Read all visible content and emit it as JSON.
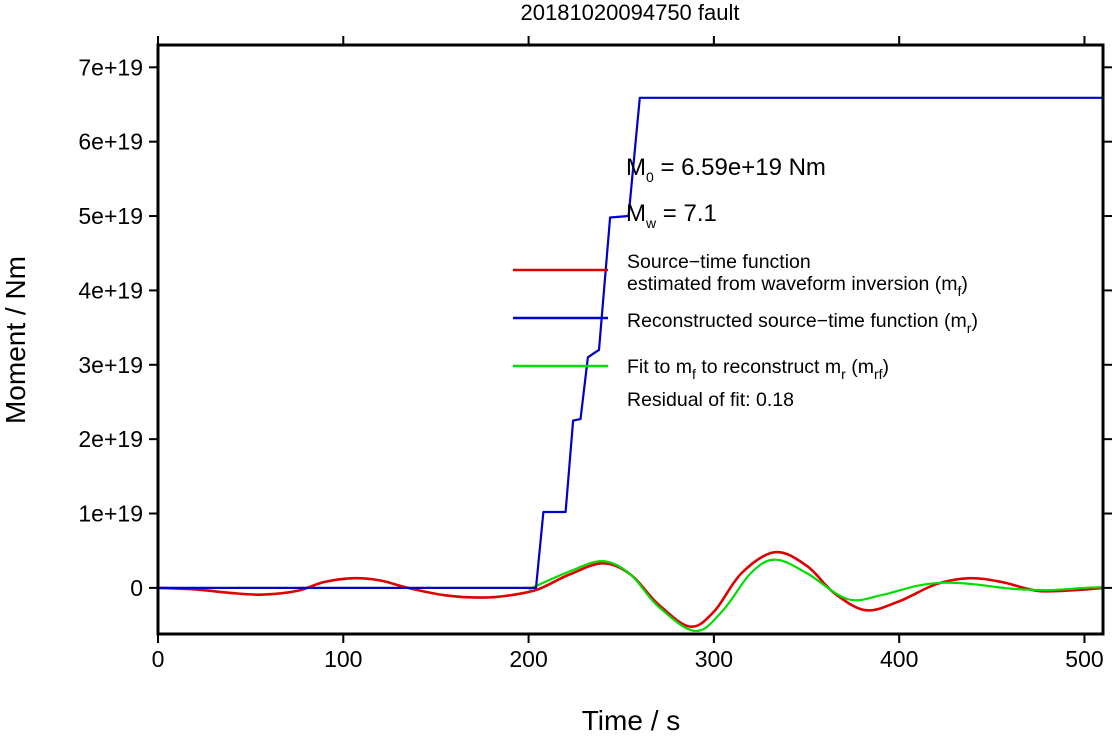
{
  "chart_data": {
    "type": "line",
    "title": "20181020094750 fault",
    "xlabel": "Time / s",
    "ylabel": "Moment / Nm",
    "xlim": [
      0,
      510
    ],
    "ylim": [
      -6.2e+18,
      7.3e+19
    ],
    "xticks": [
      0,
      100,
      200,
      300,
      400,
      500
    ],
    "xtick_labels": [
      "0",
      "100",
      "200",
      "300",
      "400",
      "500"
    ],
    "yticks": [
      0,
      1e+19,
      2e+19,
      3e+19,
      4e+19,
      5e+19,
      6e+19,
      7e+19
    ],
    "ytick_labels": [
      "0",
      "1e+19",
      "2e+19",
      "3e+19",
      "4e+19",
      "5e+19",
      "6e+19",
      "7e+19"
    ],
    "grid": false,
    "legend_position": "right",
    "annotations": {
      "m0": {
        "main": "M",
        "sub": "0",
        "rest": " = 6.59e+19 Nm"
      },
      "mw": {
        "main": "M",
        "sub": "w",
        "rest": " = 7.1"
      },
      "residual": "Residual of fit: 0.18"
    },
    "legend": [
      {
        "color": "#dd0000",
        "lines": [
          [
            {
              "t": "Source−time function"
            }
          ],
          [
            {
              "t": "estimated from waveform inversion (m"
            },
            {
              "t": "f",
              "sub": true
            },
            {
              "t": ")"
            }
          ]
        ]
      },
      {
        "color": "#0000cc",
        "lines": [
          [
            {
              "t": "Reconstructed source−time function (m"
            },
            {
              "t": "r",
              "sub": true
            },
            {
              "t": ")"
            }
          ]
        ]
      },
      {
        "color": "#00dd00",
        "lines": [
          [
            {
              "t": "Fit to m"
            },
            {
              "t": "f",
              "sub": true
            },
            {
              "t": " to reconstruct m"
            },
            {
              "t": "r",
              "sub": true
            },
            {
              "t": " (m"
            },
            {
              "t": "rf",
              "sub": true
            },
            {
              "t": ")"
            }
          ]
        ]
      }
    ],
    "series": [
      {
        "color": "#dd0000",
        "x": [
          0,
          20,
          40,
          57,
          75,
          90,
          106,
          120,
          135,
          155,
          175,
          190,
          205,
          222,
          240,
          255,
          270,
          287,
          300,
          315,
          333,
          350,
          365,
          382,
          400,
          420,
          438,
          455,
          475,
          495,
          510
        ],
        "y": [
          0,
          -2e+17,
          -7e+17,
          -9e+17,
          -4e+17,
          8e+17,
          1.3e+18,
          1e+18,
          0,
          -1e+18,
          -1.3e+18,
          -1e+18,
          -2e+17,
          1.8e+18,
          3.3e+18,
          1.8e+18,
          -2.2e+18,
          -5.2e+18,
          -3.2e+18,
          2e+18,
          4.8e+18,
          3e+18,
          -7e+17,
          -3e+18,
          -1.8e+18,
          5e+17,
          1.3e+18,
          8e+17,
          -4e+17,
          -3e+17,
          0
        ]
      },
      {
        "color": "#00dd00",
        "x": [
          200,
          222,
          240,
          255,
          270,
          290,
          305,
          320,
          333,
          350,
          372,
          390,
          410,
          425,
          440,
          460,
          480,
          500,
          510
        ],
        "y": [
          -2e+17,
          2.2e+18,
          3.6e+18,
          1.8e+18,
          -2.5e+18,
          -5.8e+18,
          -3e+18,
          2e+18,
          3.8e+18,
          2e+18,
          -1.5e+18,
          -1e+18,
          3e+17,
          7e+17,
          5e+17,
          -1e+17,
          -3e+17,
          0,
          1e+17
        ]
      },
      {
        "color": "#0000cc",
        "x": [
          0,
          204,
          208,
          220,
          224,
          228,
          232,
          235,
          238,
          244,
          254,
          260,
          510
        ],
        "y": [
          0,
          0,
          1.02e+19,
          1.02e+19,
          2.25e+19,
          2.27e+19,
          3.1e+19,
          3.15e+19,
          3.2e+19,
          4.98e+19,
          5e+19,
          6.59e+19,
          6.59e+19
        ]
      }
    ]
  }
}
